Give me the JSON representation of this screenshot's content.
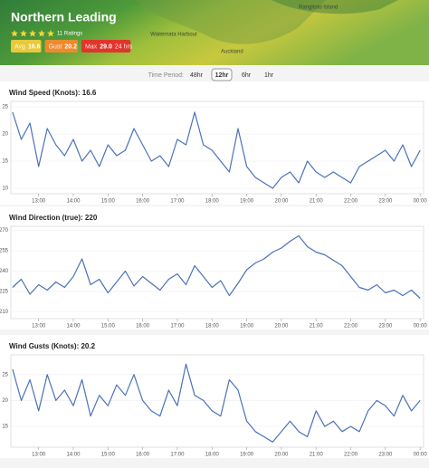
{
  "header": {
    "title": "Northern Leading",
    "ratings": "11 Ratings",
    "badges": [
      {
        "label": "Avg",
        "value": "16.6",
        "color": "#e8c93a"
      },
      {
        "label": "Gust",
        "value": "20.2",
        "color": "#ee8a2e"
      },
      {
        "label": "Max",
        "value": "29.0",
        "note": "24 hrs",
        "color": "#e0352b"
      }
    ]
  },
  "map_labels": [
    "Waitemata Harbour",
    "Auckland",
    "Rangitoto Island"
  ],
  "time_period": {
    "label": "Time Period:",
    "options": [
      "48hr",
      "12hr",
      "6hr",
      "1hr"
    ],
    "selected_index": 1
  },
  "chart_data": [
    {
      "type": "line",
      "title": "Wind Speed (Knots): 16.6",
      "color": "#4a72b8",
      "grid": true,
      "x": [
        12.25,
        12.5,
        12.75,
        13,
        13.25,
        13.5,
        13.75,
        14,
        14.25,
        14.5,
        14.75,
        15,
        15.25,
        15.5,
        15.75,
        16,
        16.25,
        16.5,
        16.75,
        17,
        17.25,
        17.5,
        17.75,
        18,
        18.25,
        18.5,
        18.75,
        19,
        19.25,
        19.5,
        19.75,
        20,
        20.25,
        20.5,
        20.75,
        21,
        21.25,
        21.5,
        21.75,
        22,
        22.25,
        22.5,
        22.75,
        23,
        23.25,
        23.5,
        23.75,
        24
      ],
      "values": [
        24,
        19,
        22,
        14,
        21,
        18,
        16,
        19,
        15,
        17,
        14,
        18,
        16,
        17,
        21,
        18,
        15,
        16,
        14,
        19,
        18,
        24,
        18,
        17,
        15,
        13,
        21,
        14,
        12,
        11,
        10,
        12,
        13,
        11,
        15,
        13,
        12,
        13,
        12,
        11,
        14,
        15,
        16,
        17,
        15,
        18,
        14,
        17
      ],
      "xlim": [
        12.2,
        24.1
      ],
      "xticks": [
        {
          "value": 13,
          "label": "13:00"
        },
        {
          "value": 14,
          "label": "14:00"
        },
        {
          "value": 15,
          "label": "15:00"
        },
        {
          "value": 16,
          "label": "16:00"
        },
        {
          "value": 17,
          "label": "17:00"
        },
        {
          "value": 18,
          "label": "18:00"
        },
        {
          "value": 19,
          "label": "19:00"
        },
        {
          "value": 20,
          "label": "20:00"
        },
        {
          "value": 21,
          "label": "21:00"
        },
        {
          "value": 22,
          "label": "22:00"
        },
        {
          "value": 23,
          "label": "23:00"
        },
        {
          "value": 24,
          "label": "00:00"
        }
      ],
      "ylim": [
        9,
        26
      ],
      "yticks": [
        10,
        15,
        20,
        25
      ]
    },
    {
      "type": "line",
      "title": "Wind Direction (true): 220",
      "color": "#4a72b8",
      "grid": true,
      "x": [
        12.25,
        12.5,
        12.75,
        13,
        13.25,
        13.5,
        13.75,
        14,
        14.25,
        14.5,
        14.75,
        15,
        15.25,
        15.5,
        15.75,
        16,
        16.25,
        16.5,
        16.75,
        17,
        17.25,
        17.5,
        17.75,
        18,
        18.25,
        18.5,
        18.75,
        19,
        19.25,
        19.5,
        19.75,
        20,
        20.25,
        20.5,
        20.75,
        21,
        21.25,
        21.5,
        21.75,
        22,
        22.25,
        22.5,
        22.75,
        23,
        23.25,
        23.5,
        23.75,
        24
      ],
      "values": [
        228,
        234,
        223,
        230,
        226,
        232,
        228,
        236,
        249,
        230,
        234,
        224,
        232,
        240,
        229,
        236,
        231,
        226,
        234,
        238,
        230,
        244,
        236,
        228,
        233,
        222,
        231,
        241,
        246,
        249,
        254,
        257,
        262,
        266,
        258,
        254,
        252,
        248,
        244,
        236,
        228,
        226,
        230,
        224,
        226,
        222,
        226,
        220
      ],
      "xlim": [
        12.2,
        24.1
      ],
      "xticks": [
        {
          "value": 13,
          "label": "13:00"
        },
        {
          "value": 14,
          "label": "14:00"
        },
        {
          "value": 15,
          "label": "15:00"
        },
        {
          "value": 16,
          "label": "16:00"
        },
        {
          "value": 17,
          "label": "17:00"
        },
        {
          "value": 18,
          "label": "18:00"
        },
        {
          "value": 19,
          "label": "19:00"
        },
        {
          "value": 20,
          "label": "20:00"
        },
        {
          "value": 21,
          "label": "21:00"
        },
        {
          "value": 22,
          "label": "22:00"
        },
        {
          "value": 23,
          "label": "23:00"
        },
        {
          "value": 24,
          "label": "00:00"
        }
      ],
      "ylim": [
        205,
        273
      ],
      "yticks": [
        210,
        225,
        240,
        255,
        270
      ]
    },
    {
      "type": "line",
      "title": "Wind Gusts (Knots): 20.2",
      "color": "#4a72b8",
      "grid": true,
      "x": [
        12.25,
        12.5,
        12.75,
        13,
        13.25,
        13.5,
        13.75,
        14,
        14.25,
        14.5,
        14.75,
        15,
        15.25,
        15.5,
        15.75,
        16,
        16.25,
        16.5,
        16.75,
        17,
        17.25,
        17.5,
        17.75,
        18,
        18.25,
        18.5,
        18.75,
        19,
        19.25,
        19.5,
        19.75,
        20,
        20.25,
        20.5,
        20.75,
        21,
        21.25,
        21.5,
        21.75,
        22,
        22.25,
        22.5,
        22.75,
        23,
        23.25,
        23.5,
        23.75,
        24
      ],
      "values": [
        26,
        20,
        24,
        18,
        25,
        20,
        22,
        19,
        24,
        17,
        21,
        19,
        23,
        21,
        25,
        20,
        18,
        17,
        22,
        19,
        27,
        21,
        20,
        18,
        17,
        24,
        22,
        16,
        14,
        13,
        12,
        14,
        16,
        14,
        13,
        18,
        15,
        16,
        14,
        15,
        14,
        18,
        20,
        19,
        17,
        21,
        18,
        20
      ],
      "xlim": [
        12.2,
        24.1
      ],
      "xticks": [
        {
          "value": 13,
          "label": "13:00"
        },
        {
          "value": 14,
          "label": "14:00"
        },
        {
          "value": 15,
          "label": "15:00"
        },
        {
          "value": 16,
          "label": "16:00"
        },
        {
          "value": 17,
          "label": "17:00"
        },
        {
          "value": 18,
          "label": "18:00"
        },
        {
          "value": 19,
          "label": "19:00"
        },
        {
          "value": 20,
          "label": "20:00"
        },
        {
          "value": 21,
          "label": "21:00"
        },
        {
          "value": 22,
          "label": "22:00"
        },
        {
          "value": 23,
          "label": "23:00"
        },
        {
          "value": 24,
          "label": "00:00"
        }
      ],
      "ylim": [
        11,
        28.8
      ],
      "yticks": [
        15,
        20,
        25
      ]
    }
  ]
}
